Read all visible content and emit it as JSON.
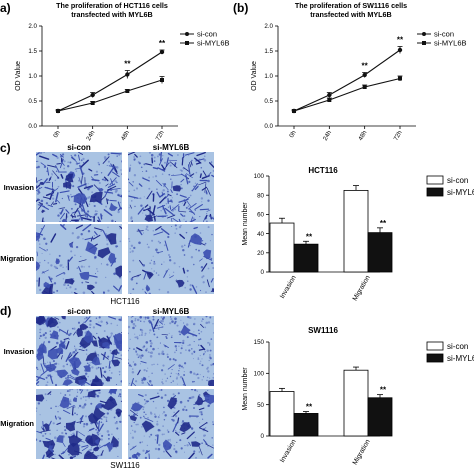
{
  "chart_data": [
    {
      "panel": "a",
      "type": "line",
      "title": "The proliferation of HCT116 cells transfected with MYL6B",
      "title_lines": [
        "The proliferation of HCT116 cells",
        "transfected with MYL6B"
      ],
      "ylabel": "OD Value",
      "xlabel": "",
      "categories": [
        "0h",
        "24h",
        "48h",
        "72h"
      ],
      "ylim": [
        0.0,
        2.0
      ],
      "yticks": [
        "0.0",
        "0.5",
        "1.0",
        "1.5",
        "2.0"
      ],
      "series": [
        {
          "name": "si-con",
          "values": [
            0.3,
            0.62,
            1.03,
            1.48
          ],
          "errors": [
            0.02,
            0.05,
            0.08,
            0.04
          ],
          "marker": "circle"
        },
        {
          "name": "si-MYL6B",
          "values": [
            0.3,
            0.46,
            0.7,
            0.92
          ],
          "errors": [
            0.02,
            0.03,
            0.03,
            0.07
          ],
          "marker": "square"
        }
      ],
      "annotations": [
        {
          "category": "48h",
          "text": "**"
        },
        {
          "category": "72h",
          "text": "**"
        }
      ],
      "legend": "top-right",
      "grid": false
    },
    {
      "panel": "b",
      "type": "line",
      "title": "The proliferation of SW1116 cells transfected with MYL6B",
      "title_lines": [
        "The proliferation of SW1116 cells",
        "transfected with MYL6B"
      ],
      "ylabel": "OD Value",
      "xlabel": "",
      "categories": [
        "0h",
        "24h",
        "48h",
        "72h"
      ],
      "ylim": [
        0.0,
        2.0
      ],
      "yticks": [
        "0.0",
        "0.5",
        "1.0",
        "1.5",
        "2.0"
      ],
      "series": [
        {
          "name": "si-con",
          "values": [
            0.3,
            0.62,
            1.02,
            1.52
          ],
          "errors": [
            0.02,
            0.05,
            0.05,
            0.07
          ],
          "marker": "circle"
        },
        {
          "name": "si-MYL6B",
          "values": [
            0.3,
            0.52,
            0.78,
            0.95
          ],
          "errors": [
            0.02,
            0.04,
            0.04,
            0.05
          ],
          "marker": "square"
        }
      ],
      "annotations": [
        {
          "category": "48h",
          "text": "**"
        },
        {
          "category": "72h",
          "text": "**"
        }
      ],
      "legend": "top-right",
      "grid": false
    },
    {
      "panel": "c",
      "type": "bar",
      "title": "HCT116",
      "ylabel": "Mean number",
      "xlabel": "",
      "categories": [
        "Invasion",
        "Migration"
      ],
      "ylim": [
        0,
        100
      ],
      "yticks": [
        "0",
        "20",
        "40",
        "60",
        "80",
        "100"
      ],
      "series": [
        {
          "name": "si-con",
          "values": [
            51,
            85
          ],
          "errors": [
            5,
            5
          ],
          "fill": "#ffffff"
        },
        {
          "name": "si-MYL6B",
          "values": [
            29,
            41
          ],
          "errors": [
            3,
            5
          ],
          "fill": "#111111"
        }
      ],
      "annotations": [
        {
          "category": "Invasion",
          "text": "**"
        },
        {
          "category": "Migration",
          "text": "**"
        }
      ],
      "legend": "top-right",
      "grid": false
    },
    {
      "panel": "d",
      "type": "bar",
      "title": "SW1116",
      "ylabel": "Mean number",
      "xlabel": "",
      "categories": [
        "Invasion",
        "Migration"
      ],
      "ylim": [
        0,
        150
      ],
      "yticks": [
        "0",
        "50",
        "100",
        "150"
      ],
      "series": [
        {
          "name": "si-con",
          "values": [
            71,
            105
          ],
          "errors": [
            5,
            5
          ],
          "fill": "#ffffff"
        },
        {
          "name": "si-MYL6B",
          "values": [
            36,
            61
          ],
          "errors": [
            3,
            5
          ],
          "fill": "#111111"
        }
      ],
      "annotations": [
        {
          "category": "Invasion",
          "text": "**"
        },
        {
          "category": "Migration",
          "text": "**"
        }
      ],
      "legend": "top-right",
      "grid": false
    }
  ],
  "micrographs": {
    "c": {
      "caption": "HCT116",
      "col_labels": [
        "si-con",
        "si-MYL6B"
      ],
      "row_labels": [
        "Invasion",
        "Migration"
      ]
    },
    "d": {
      "caption": "SW1116",
      "col_labels": [
        "si-con",
        "si-MYL6B"
      ],
      "row_labels": [
        "Invasion",
        "Migration"
      ]
    }
  },
  "panel_letters": {
    "a": "a)",
    "b": "(b)",
    "c": "c)",
    "d": "d)"
  },
  "colors": {
    "stain": "#3b4fb0",
    "stain_dark": "#1f2a8a",
    "background": "#a9c3e3",
    "bar_dark": "#111111"
  }
}
